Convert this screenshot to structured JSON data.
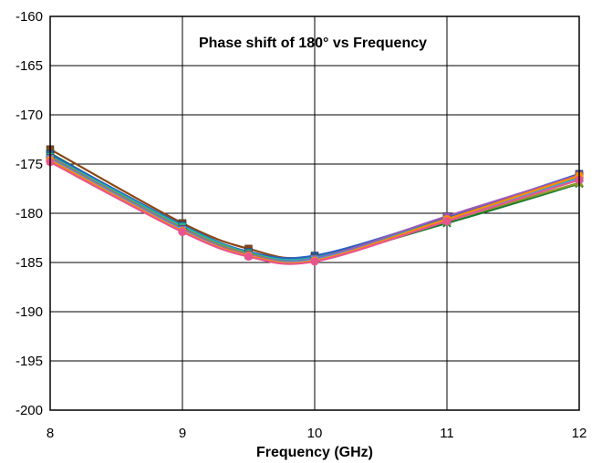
{
  "chart_data": {
    "type": "line",
    "title": "Phase shift of 180° vs Frequency",
    "xlabel": "Frequency (GHz)",
    "ylabel": "",
    "xlim": [
      8,
      12
    ],
    "ylim": [
      -200,
      -160
    ],
    "x_ticks": [
      8,
      9,
      10,
      11,
      12
    ],
    "x_tick_labels": [
      "8",
      "9",
      "10",
      "11",
      "12"
    ],
    "y_ticks": [
      -200,
      -195,
      -190,
      -185,
      -180,
      -175,
      -170,
      -165,
      -160
    ],
    "y_tick_labels": [
      "-200",
      "-195",
      "-190",
      "-185",
      "-180",
      "-175",
      "-170",
      "-165",
      "-160"
    ],
    "grid": true,
    "legend": "none",
    "x": [
      8,
      9,
      9.5,
      10,
      11,
      12
    ],
    "series": [
      {
        "color": "#8b4513",
        "marker": "square",
        "values": [
          -173.5,
          -181.0,
          -183.6,
          -184.4,
          -180.5,
          -176.3
        ]
      },
      {
        "color": "#1a7a30",
        "marker": "x",
        "values": [
          -173.9,
          -181.4,
          -184.0,
          -184.6,
          -181.0,
          -177.0
        ]
      },
      {
        "color": "#2b5fbf",
        "marker": "square",
        "values": [
          -174.0,
          -181.2,
          -183.9,
          -184.3,
          -180.4,
          -176.0
        ]
      },
      {
        "color": "#20b2aa",
        "marker": "square",
        "values": [
          -174.2,
          -181.3,
          -184.0,
          -184.5,
          -180.6,
          -176.4
        ]
      },
      {
        "color": "#8c9a2a",
        "marker": "triangle",
        "values": [
          -174.3,
          -181.5,
          -184.1,
          -184.7,
          -180.8,
          -176.9
        ]
      },
      {
        "color": "#9b59b6",
        "marker": "square",
        "values": [
          -174.4,
          -181.6,
          -184.2,
          -184.6,
          -180.3,
          -176.1
        ]
      },
      {
        "color": "#4aa0e0",
        "marker": "x",
        "values": [
          -174.5,
          -181.7,
          -184.3,
          -184.7,
          -180.7,
          -176.5
        ]
      },
      {
        "color": "#ff8c00",
        "marker": "circle",
        "values": [
          -174.6,
          -181.8,
          -184.3,
          -184.8,
          -180.6,
          -176.2
        ]
      },
      {
        "color": "#e8558e",
        "marker": "circle",
        "values": [
          -174.8,
          -181.9,
          -184.4,
          -184.9,
          -180.8,
          -176.6
        ]
      }
    ]
  }
}
